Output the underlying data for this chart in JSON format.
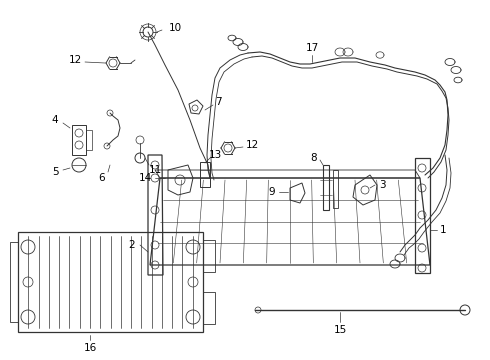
{
  "bg_color": "#ffffff",
  "line_color": "#333333",
  "fig_w": 4.9,
  "fig_h": 3.6,
  "dpi": 100
}
